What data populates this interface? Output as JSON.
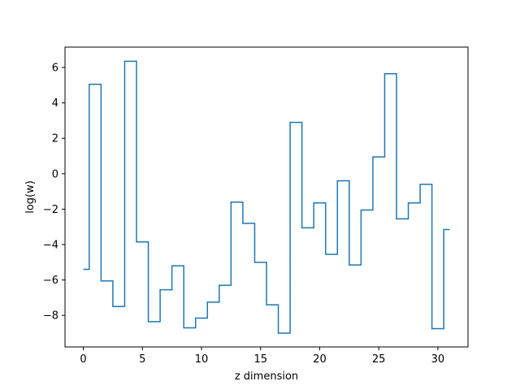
{
  "chart_data": {
    "type": "line",
    "drawstyle": "steps-mid",
    "title": "",
    "xlabel": "z dimension",
    "ylabel": "log(w)",
    "xlim": [
      -1.55,
      32.55
    ],
    "ylim": [
      -9.78,
      7.15
    ],
    "xticks": [
      0,
      5,
      10,
      15,
      20,
      25,
      30
    ],
    "xtick_labels": [
      "0",
      "5",
      "10",
      "15",
      "20",
      "25",
      "30"
    ],
    "yticks": [
      -8,
      -6,
      -4,
      -2,
      0,
      2,
      4,
      6
    ],
    "ytick_labels": [
      "−8",
      "−6",
      "−4",
      "−2",
      "0",
      "2",
      "4",
      "6"
    ],
    "grid": false,
    "line_color": "#1f77b4",
    "series": [
      {
        "x": [
          0,
          1,
          2,
          3,
          4,
          5,
          6,
          7,
          8,
          9,
          10,
          11,
          12,
          13,
          14,
          15,
          16,
          17,
          18,
          19,
          20,
          21,
          22,
          23,
          24,
          25,
          26,
          27,
          28,
          29,
          30,
          31
        ],
        "values": [
          -5.4,
          5.05,
          -6.05,
          -7.5,
          6.35,
          -3.85,
          -8.35,
          -6.55,
          -5.2,
          -8.7,
          -8.15,
          -7.25,
          -6.3,
          -1.6,
          -2.8,
          -5.0,
          -7.4,
          -9.0,
          2.9,
          -3.05,
          -1.65,
          -4.55,
          -0.4,
          -5.15,
          -2.05,
          0.95,
          5.65,
          -2.55,
          -1.65,
          -0.6,
          -8.75,
          -3.15
        ]
      }
    ]
  }
}
